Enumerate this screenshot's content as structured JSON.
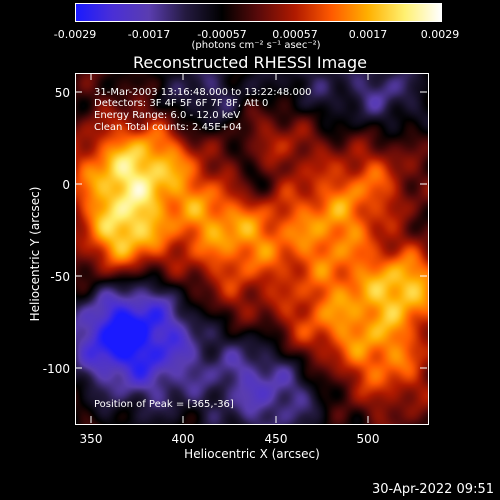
{
  "colorbar": {
    "ticks": [
      "-0.0029",
      "-0.0017",
      "-0.00057",
      "0.00057",
      "0.0017",
      "0.0029"
    ],
    "units": "(photons cm⁻² s⁻¹ asec⁻²)",
    "stops": [
      "#1a1aff",
      "#4a2fd6",
      "#5a3db0",
      "#241a40",
      "#000000",
      "#5a0a0a",
      "#b01a00",
      "#ff5a00",
      "#ffb000",
      "#fff070",
      "#ffffff"
    ]
  },
  "title": "Reconstructed RHESSI Image",
  "annotations": {
    "time": "31-Mar-2003 13:16:48.000 to 13:22:48.000",
    "detectors": "Detectors: 3F 4F 5F 6F 7F 8F, Att 0",
    "energy": "Energy Range: 6.0 - 12.0 keV",
    "clean": "Clean     Total counts: 2.45E+04",
    "peak": "Position of Peak = [365,-36]"
  },
  "axes": {
    "xlabel": "Heliocentric X (arcsec)",
    "ylabel": "Heliocentric Y (arcsec)",
    "xticks": [
      "350",
      "400",
      "450",
      "500"
    ],
    "yticks": [
      "50",
      "0",
      "-50",
      "-100"
    ]
  },
  "timestamp": "30-Apr-2022 09:51"
}
